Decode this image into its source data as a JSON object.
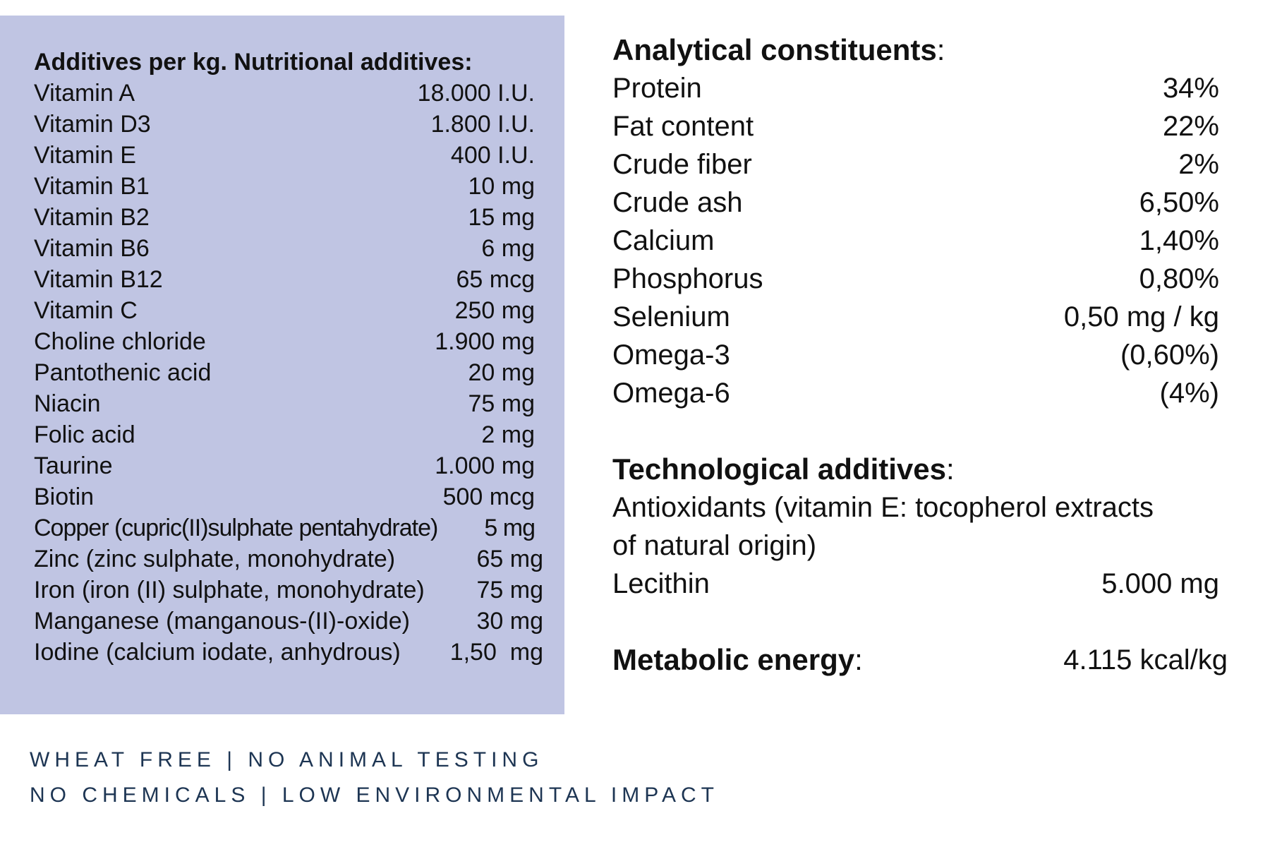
{
  "additives": {
    "title": "Additives per kg. Nutritional additives:",
    "items": [
      {
        "label": "Vitamin A",
        "value": "18.000 I.U."
      },
      {
        "label": "Vitamin D3",
        "value": "1.800 I.U."
      },
      {
        "label": "Vitamin E",
        "value": "400 I.U."
      },
      {
        "label": "Vitamin B1",
        "value": "10 mg"
      },
      {
        "label": "Vitamin B2",
        "value": "15 mg"
      },
      {
        "label": "Vitamin B6",
        "value": "6 mg"
      },
      {
        "label": "Vitamin B12",
        "value": "65 mcg"
      },
      {
        "label": "Vitamin C",
        "value": "250 mg"
      },
      {
        "label": "Choline chloride",
        "value": "1.900 mg"
      },
      {
        "label": "Pantothenic acid",
        "value": "20 mg"
      },
      {
        "label": "Niacin",
        "value": "75 mg"
      },
      {
        "label": "Folic acid",
        "value": "2 mg"
      },
      {
        "label": "Taurine",
        "value": "1.000 mg"
      },
      {
        "label": "Biotin",
        "value": "500 mcg"
      },
      {
        "label": "Copper (cupric(II)sulphate pentahydrate)",
        "value": "5 mg"
      },
      {
        "label": "Zinc (zinc sulphate, monohydrate)",
        "value": "65 mg"
      },
      {
        "label": "Iron (iron (II) sulphate, monohydrate)",
        "value": "75 mg"
      },
      {
        "label": "Manganese (manganous-(II)-oxide)",
        "value": "30 mg"
      },
      {
        "label": "Iodine (calcium iodate, anhydrous)",
        "value": "1,50  mg"
      }
    ]
  },
  "analytical": {
    "title": "Analytical constituents",
    "colon": ":",
    "items": [
      {
        "label": "Protein",
        "value": "34%"
      },
      {
        "label": "Fat content",
        "value": "22%"
      },
      {
        "label": "Crude fiber",
        "value": "2%"
      },
      {
        "label": "Crude ash",
        "value": "6,50%"
      },
      {
        "label": "Calcium",
        "value": "1,40%"
      },
      {
        "label": "Phosphorus",
        "value": "0,80%"
      },
      {
        "label": "Selenium",
        "value": "0,50 mg / kg"
      },
      {
        "label": "Omega-3",
        "value": "(0,60%)"
      },
      {
        "label": "Omega-6",
        "value": "(4%)"
      }
    ]
  },
  "technological": {
    "title": "Technological additives",
    "colon": ":",
    "antioxidants_line1": "Antioxidants (vitamin E: tocopherol extracts",
    "antioxidants_line2": "of natural origin)",
    "lecithin_label": "Lecithin",
    "lecithin_value": "5.000 mg"
  },
  "energy": {
    "label": "Metabolic energy",
    "colon": ":",
    "value": "4.115 kcal/kg"
  },
  "footer": {
    "line1": "WHEAT FREE | NO ANIMAL TESTING",
    "line2": "NO CHEMICALS | LOW ENVIRONMENTAL IMPACT"
  }
}
